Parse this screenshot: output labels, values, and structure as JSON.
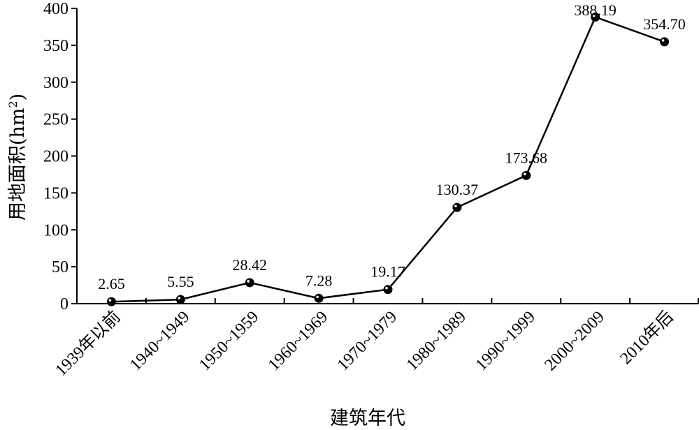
{
  "chart_data": {
    "type": "line",
    "categories": [
      "1939年以前",
      "1940~1949",
      "1950~1959",
      "1960~1969",
      "1970~1979",
      "1980~1989",
      "1990~1999",
      "2000~2009",
      "2010年后"
    ],
    "series": [
      {
        "values": [
          2.65,
          5.55,
          28.42,
          7.28,
          19.17,
          130.37,
          173.68,
          388.19,
          354.7
        ]
      }
    ],
    "data_labels": [
      "2.65",
      "5.55",
      "28.42",
      "7.28",
      "19.17",
      "130.37",
      "173.68",
      "388.19",
      "354.70"
    ],
    "xlabel": "建筑年代",
    "ylabel_main": "用地面积(hm",
    "ylabel_sup": "2",
    "ylabel_end": ")",
    "ylim": [
      0,
      400
    ],
    "yticks": [
      0,
      50,
      100,
      150,
      200,
      250,
      300,
      350,
      400
    ],
    "grid": false,
    "legend": "none",
    "line_color": "#000000",
    "marker": "filled-circle"
  }
}
